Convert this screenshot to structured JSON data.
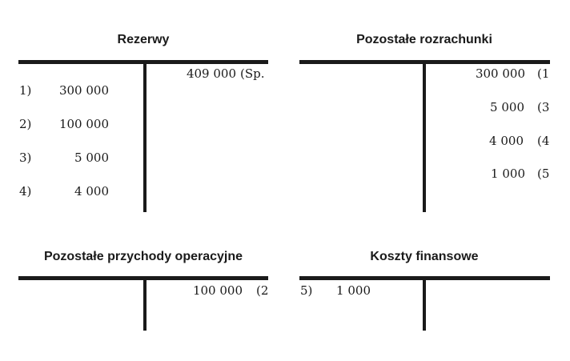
{
  "accounts": [
    {
      "title": "Rezerwy",
      "debit": [
        {
          "ref": "1)",
          "amount": "300 000"
        },
        {
          "ref": "2)",
          "amount": "100 000"
        },
        {
          "ref": "3)",
          "amount": "5 000"
        },
        {
          "ref": "4)",
          "amount": "4 000"
        }
      ],
      "credit": [
        {
          "amount": "409 000",
          "ref": "(Sp."
        }
      ]
    },
    {
      "title": "Pozostałe rozrachunki",
      "debit": [],
      "credit": [
        {
          "amount": "300 000",
          "ref": "(1"
        },
        {
          "amount": "5 000",
          "ref": "(3"
        },
        {
          "amount": "4 000",
          "ref": "(4"
        },
        {
          "amount": "1 000",
          "ref": "(5"
        }
      ]
    },
    {
      "title": "Pozostałe przychody operacyjne",
      "debit": [],
      "credit": [
        {
          "amount": "100 000",
          "ref": "(2"
        }
      ]
    },
    {
      "title": "Koszty finansowe",
      "debit": [
        {
          "ref": "5)",
          "amount": "1 000"
        }
      ],
      "credit": []
    }
  ]
}
